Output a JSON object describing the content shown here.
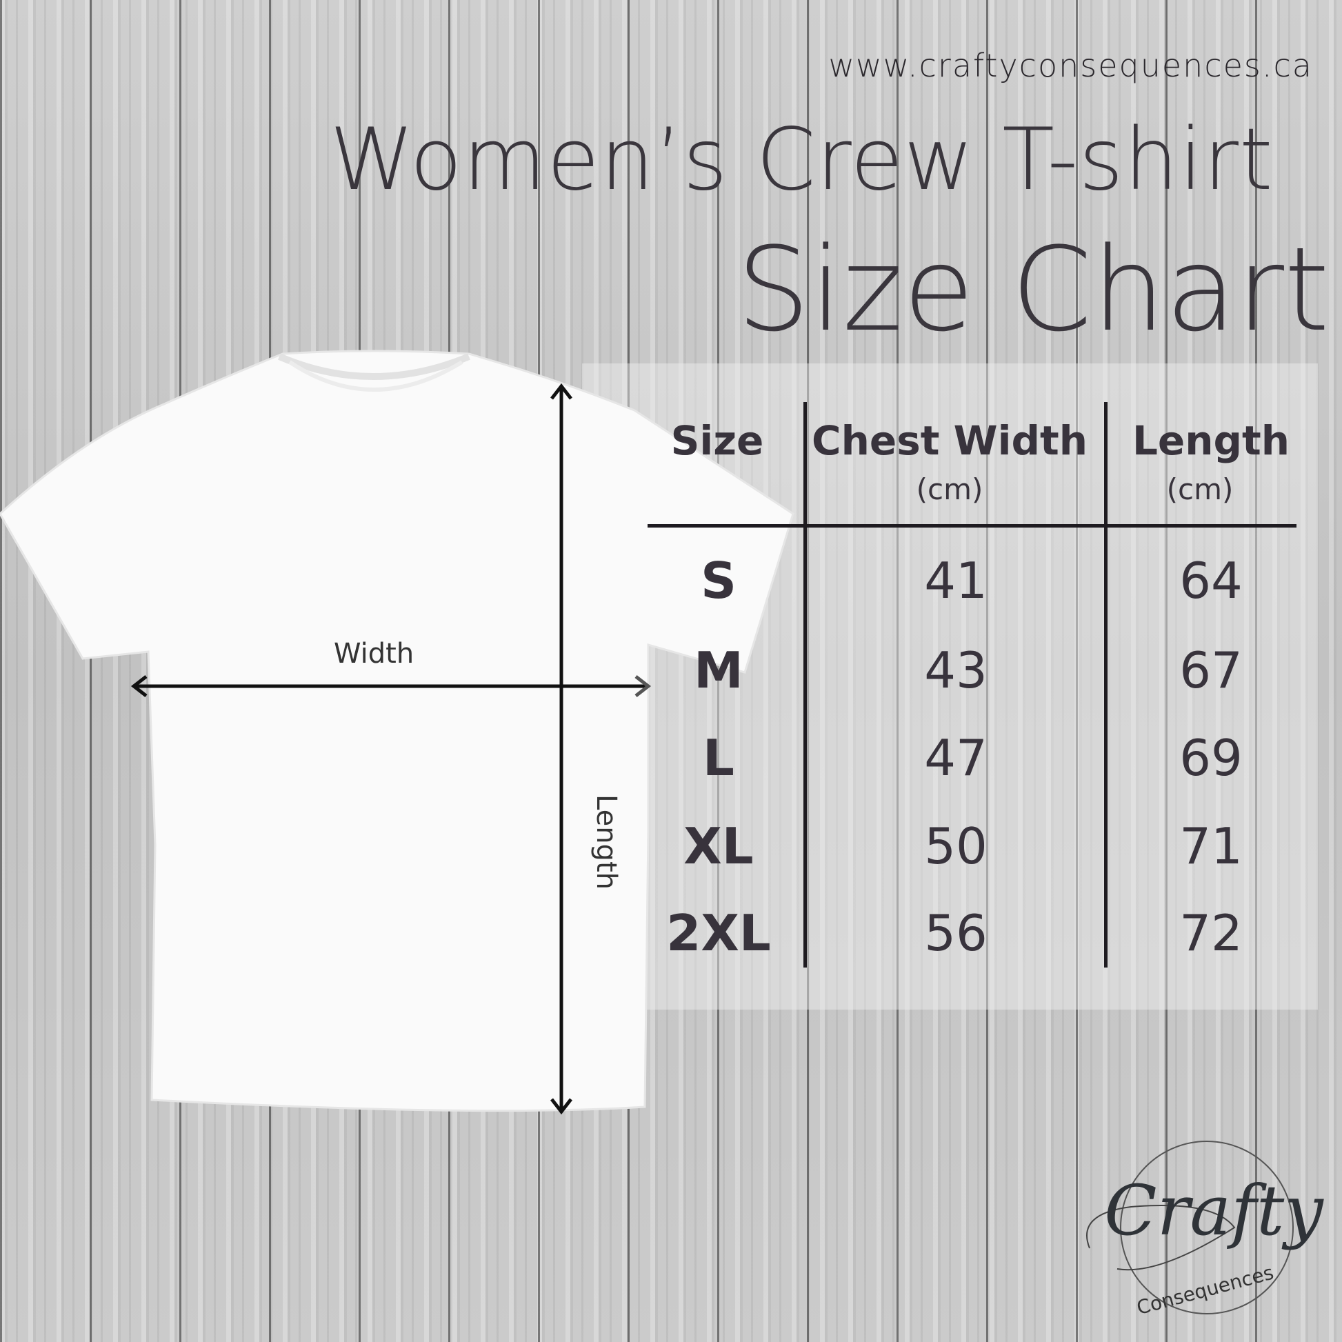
{
  "header": {
    "url": "www.craftyconsequences.ca",
    "title": "Women’s Crew T-shirt",
    "subtitle": "Size Chart"
  },
  "diagram": {
    "width_label": "Width",
    "length_label": "Length"
  },
  "table": {
    "columns": [
      {
        "label": "Size",
        "unit": ""
      },
      {
        "label": "Chest Width",
        "unit": "(cm)"
      },
      {
        "label": "Length",
        "unit": "(cm)"
      }
    ],
    "rows": [
      {
        "size": "S",
        "chest": "41",
        "length": "64"
      },
      {
        "size": "M",
        "chest": "43",
        "length": "67"
      },
      {
        "size": "L",
        "chest": "47",
        "length": "69"
      },
      {
        "size": "XL",
        "chest": "50",
        "length": "71"
      },
      {
        "size": "2XL",
        "chest": "56",
        "length": "72"
      }
    ]
  },
  "logo": {
    "text": "Crafty",
    "subtext": "Consequences"
  },
  "colors": {
    "text": "#38333c",
    "shirt": "#fafafa"
  }
}
